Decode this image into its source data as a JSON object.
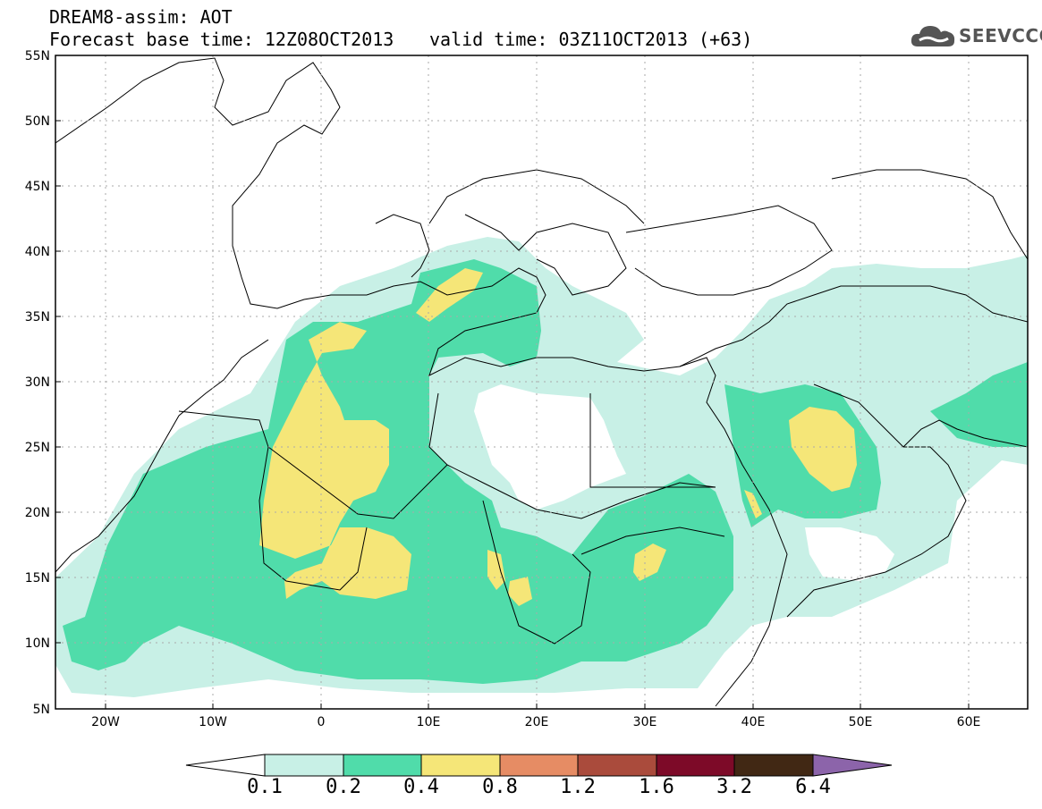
{
  "header": {
    "line1": "DREAM8-assim: AOT",
    "line2": "Forecast base time: 12Z08OCT2013",
    "valid": "valid time: 03Z11OCT2013 (+63)"
  },
  "logo": {
    "text": "SEEVCCC",
    "icon": "cloud-icon"
  },
  "map": {
    "lon_range": [
      -25,
      65
    ],
    "lat_range": [
      5,
      55
    ],
    "lat_labels": [
      "55N",
      "50N",
      "45N",
      "40N",
      "35N",
      "30N",
      "25N",
      "20N",
      "15N",
      "10N",
      "5N"
    ],
    "lon_labels": [
      "20W",
      "10W",
      "0",
      "10E",
      "20E",
      "30E",
      "40E",
      "50E",
      "60E"
    ]
  },
  "colorbar": {
    "labels": [
      "0.1",
      "0.2",
      "0.4",
      "0.8",
      "1.2",
      "1.6",
      "3.2",
      "6.4"
    ],
    "colors": [
      "#ffffff",
      "#c8f0e6",
      "#50dcaa",
      "#f5e678",
      "#e68c64",
      "#aa4b3c",
      "#7d0a28",
      "#412814",
      "#8c64aa"
    ]
  }
}
